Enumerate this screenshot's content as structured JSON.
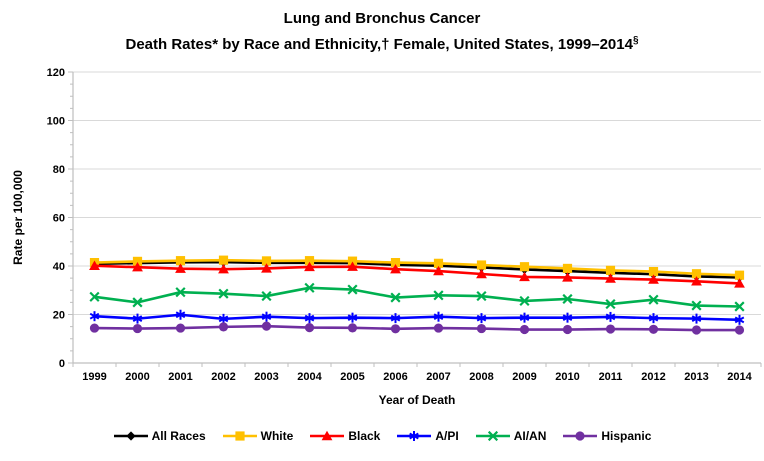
{
  "title": {
    "line1": "Lung and Bronchus Cancer",
    "line2": "Death Rates* by Race and Ethnicity,† Female, United States, 1999–2014",
    "line2_superscript": "§"
  },
  "chart_data": {
    "type": "line",
    "x": [
      1999,
      2000,
      2001,
      2002,
      2003,
      2004,
      2005,
      2006,
      2007,
      2008,
      2009,
      2010,
      2011,
      2012,
      2013,
      2014
    ],
    "xlabel": "Year of Death",
    "ylabel": "Rate per 100,000",
    "ylim": [
      0,
      120
    ],
    "y_major_ticks": [
      0,
      20,
      40,
      60,
      80,
      100,
      120
    ],
    "y_minor_step": 5,
    "grid": "horizontal-major-only",
    "legend_position": "bottom",
    "style": {
      "grid_color": "#D9D9D9",
      "axis_color": "#BFBFBF",
      "text_color": "#000000"
    },
    "series": [
      {
        "name": "All Races",
        "color": "#000000",
        "marker": "diamond",
        "values": [
          40.9,
          41.2,
          41.5,
          41.6,
          41.3,
          41.3,
          41.2,
          40.5,
          40.1,
          39.4,
          38.6,
          37.9,
          37.2,
          36.6,
          35.7,
          35.3
        ]
      },
      {
        "name": "White",
        "color": "#FFC000",
        "marker": "square",
        "values": [
          41.4,
          41.9,
          42.2,
          42.4,
          42.1,
          42.2,
          42.0,
          41.4,
          41.1,
          40.4,
          39.7,
          39.0,
          38.2,
          37.7,
          36.8,
          36.2
        ]
      },
      {
        "name": "Black",
        "color": "#FF0000",
        "marker": "triangle",
        "values": [
          40.1,
          39.5,
          38.9,
          38.7,
          39.0,
          39.6,
          39.7,
          38.7,
          37.9,
          36.7,
          35.5,
          35.3,
          34.8,
          34.4,
          33.7,
          32.8
        ]
      },
      {
        "name": "A/PI",
        "color": "#0000FF",
        "marker": "asterisk",
        "values": [
          19.3,
          18.3,
          19.9,
          18.2,
          19.1,
          18.5,
          18.7,
          18.5,
          19.1,
          18.5,
          18.7,
          18.7,
          19.0,
          18.5,
          18.3,
          17.8
        ]
      },
      {
        "name": "AI/AN",
        "color": "#00B050",
        "marker": "x",
        "values": [
          27.3,
          25.0,
          29.2,
          28.6,
          27.6,
          31.0,
          30.3,
          27.0,
          27.9,
          27.6,
          25.6,
          26.4,
          24.3,
          26.1,
          23.7,
          23.3
        ]
      },
      {
        "name": "Hispanic",
        "color": "#7030A0",
        "marker": "circle",
        "values": [
          14.4,
          14.2,
          14.4,
          14.9,
          15.2,
          14.6,
          14.5,
          14.1,
          14.4,
          14.2,
          13.8,
          13.8,
          14.0,
          13.9,
          13.6,
          13.6
        ]
      }
    ]
  }
}
